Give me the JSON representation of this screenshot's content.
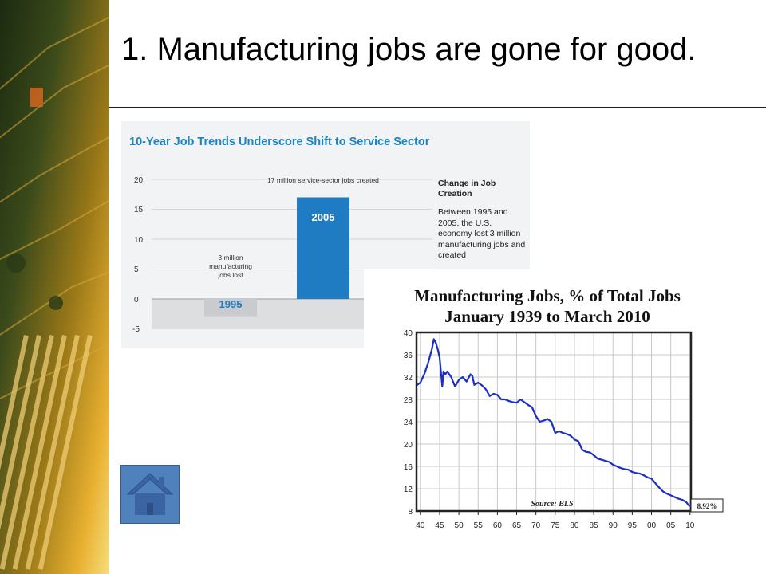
{
  "slide": {
    "title": "1. Manufacturing jobs are gone for good."
  },
  "chart_data": [
    {
      "type": "bar",
      "title": "10-Year Job Trends Underscore Shift to Service Sector",
      "categories": [
        "1995",
        "2005"
      ],
      "values": [
        -3,
        17
      ],
      "ylim": [
        -5,
        20
      ],
      "yticks": [
        "20",
        "15",
        "10",
        "5",
        "0",
        "-5"
      ],
      "bar_annotations": [
        "3 million manufacturing jobs lost",
        "17 million service-sector jobs created"
      ],
      "note_heading": "Change in Job Creation",
      "note_text": "Between 1995 and 2005, the U.S. economy lost 3 million manufacturing jobs and created",
      "colors": {
        "title": "#1b83c3",
        "bar_2005": "#1f7cc2",
        "bar_1995": "#c9cbce"
      }
    },
    {
      "type": "line",
      "title": "Manufacturing Jobs, % of Total Jobs",
      "subtitle": "January 1939 to March 2010",
      "source": "Source: BLS",
      "end_label": "8.92%",
      "ylim": [
        8,
        40
      ],
      "yticks": [
        "40",
        "36",
        "32",
        "28",
        "24",
        "20",
        "16",
        "12",
        "8"
      ],
      "xlim": [
        1939,
        2010.25
      ],
      "xtick_labels": [
        "40",
        "45",
        "50",
        "55",
        "60",
        "65",
        "70",
        "75",
        "80",
        "85",
        "90",
        "95",
        "00",
        "05",
        "10"
      ],
      "grid": true,
      "line_color": "#1b2fc4",
      "x": [
        1939,
        1940,
        1941,
        1942,
        1943,
        1943.5,
        1944,
        1944.5,
        1945,
        1945.7,
        1946,
        1946.5,
        1947,
        1948,
        1949,
        1950,
        1951,
        1952,
        1953,
        1953.5,
        1954,
        1955,
        1956,
        1957,
        1958,
        1959,
        1960,
        1961,
        1962,
        1963,
        1964,
        1965,
        1966,
        1967,
        1968,
        1969,
        1970,
        1971,
        1972,
        1973,
        1974,
        1975,
        1976,
        1977,
        1978,
        1979,
        1980,
        1981,
        1982,
        1983,
        1984,
        1985,
        1986,
        1987,
        1988,
        1989,
        1990,
        1991,
        1992,
        1993,
        1994,
        1995,
        1996,
        1997,
        1998,
        1999,
        2000,
        2001,
        2002,
        2003,
        2004,
        2005,
        2006,
        2007,
        2008,
        2009,
        2009.7,
        2010.25
      ],
      "y": [
        30.5,
        31.0,
        32.5,
        34.5,
        37.0,
        38.8,
        38.2,
        37.0,
        35.5,
        30.3,
        33.0,
        32.5,
        33.0,
        32.0,
        30.3,
        31.5,
        32.0,
        31.2,
        32.5,
        32.2,
        30.6,
        31.0,
        30.5,
        29.8,
        28.6,
        29.0,
        28.8,
        28.0,
        28.0,
        27.7,
        27.5,
        27.4,
        28.0,
        27.5,
        27.0,
        26.6,
        25.0,
        24.0,
        24.2,
        24.5,
        24.0,
        22.0,
        22.3,
        22.0,
        21.8,
        21.5,
        20.8,
        20.5,
        19.0,
        18.6,
        18.5,
        18.0,
        17.4,
        17.2,
        17.0,
        16.8,
        16.3,
        16.0,
        15.7,
        15.5,
        15.4,
        15.0,
        14.8,
        14.7,
        14.4,
        14.0,
        13.8,
        13.0,
        12.2,
        11.5,
        11.1,
        10.8,
        10.5,
        10.2,
        10.0,
        9.6,
        9.0,
        8.92
      ]
    }
  ]
}
